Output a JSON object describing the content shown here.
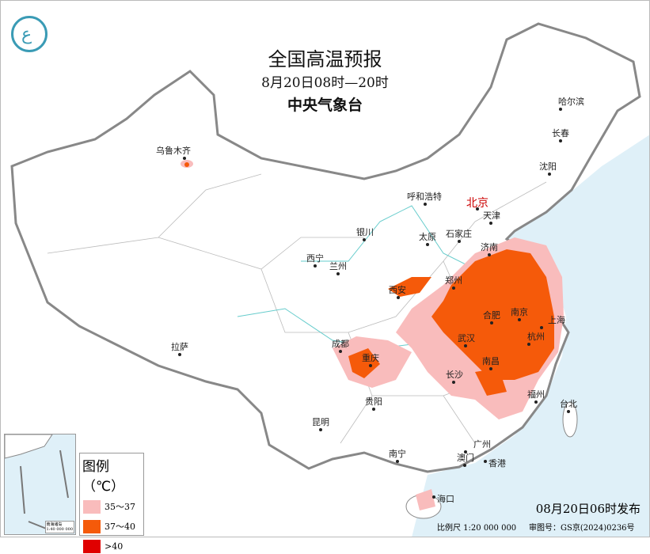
{
  "header": {
    "title": "全国高温预报",
    "period": "8月20日08时—20时",
    "issuer": "中央气象台"
  },
  "logo": {
    "icon": "cma-logo-icon"
  },
  "capital": "北京",
  "cities": [
    "乌鲁木齐",
    "哈尔滨",
    "长春",
    "沈阳",
    "呼和浩特",
    "天津",
    "石家庄",
    "太原",
    "济南",
    "银川",
    "西宁",
    "兰州",
    "西安",
    "郑州",
    "合肥",
    "南京",
    "上海",
    "杭州",
    "武汉",
    "成都",
    "重庆",
    "长沙",
    "南昌",
    "福州",
    "台北",
    "拉萨",
    "贵阳",
    "昆明",
    "南宁",
    "广州",
    "澳门",
    "香港",
    "海口"
  ],
  "legend": {
    "title": "图例（℃）",
    "items": [
      {
        "label": "35～37",
        "color": "#f9bcbc"
      },
      {
        "label": "37～40",
        "color": "#f55a0a"
      },
      {
        "label": ">40",
        "color": "#e00000"
      }
    ]
  },
  "inset": {
    "caption_line1": "南海诸岛",
    "caption_line2": "1:40 000 000"
  },
  "footer": {
    "published": "08月20日06时发布",
    "scale": "比例尺 1:20 000 000",
    "review_no": "审图号：GS京(2024)0236号"
  },
  "colors": {
    "sea": "#dff0f8",
    "land": "#ffffff",
    "border": "#888888"
  }
}
